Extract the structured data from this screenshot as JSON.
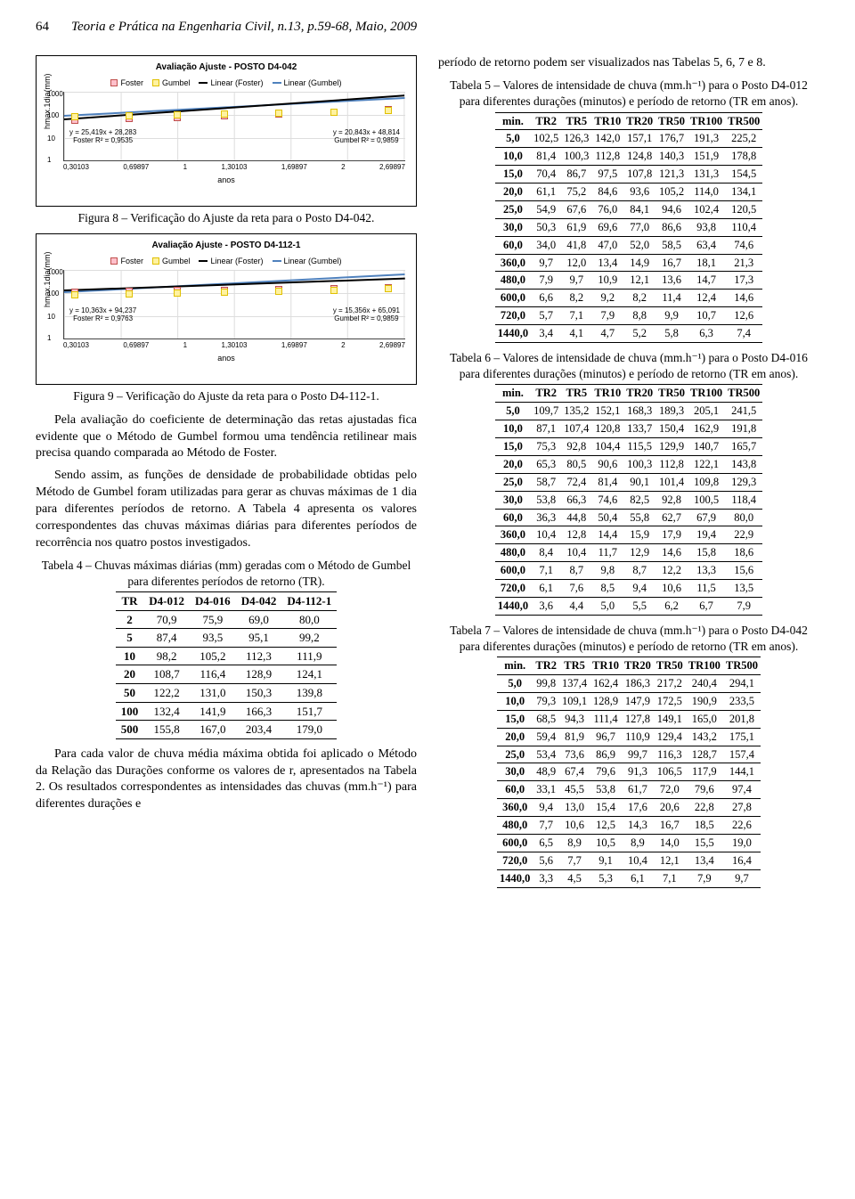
{
  "header": {
    "page": "64",
    "journal": "Teoria e Prática na Engenharia Civil, n.13, p.59-68, Maio, 2009"
  },
  "chart1": {
    "title": "Avaliação Ajuste - POSTO D4-042",
    "legend": [
      "Foster",
      "Gumbel",
      "Linear (Foster)",
      "Linear (Gumbel)"
    ],
    "colors": {
      "foster": "#c0504d",
      "gumbel": "#e0c000",
      "linFoster": "#000000",
      "linGumbel": "#4f81bd"
    },
    "ylabel": "hmax.1dia(mm)",
    "yticks": [
      "1",
      "10",
      "100",
      "1000"
    ],
    "xlabel": "anos",
    "xticks": [
      "0,30103",
      "0,69897",
      "1",
      "1,30103",
      "1,69897",
      "2",
      "2,69897"
    ],
    "eqLeft": {
      "l1": "y = 25,419x + 28,283",
      "l2": "Foster R² = 0,9535"
    },
    "eqRight": {
      "l1": "y = 20,843x + 48,814",
      "l2": "Gumbel R² = 0,9859"
    }
  },
  "fig8": "Figura 8 – Verificação do Ajuste da reta para o Posto D4-042.",
  "chart2": {
    "title": "Avaliação Ajuste - POSTO D4-112-1",
    "legend": [
      "Foster",
      "Gumbel",
      "Linear (Foster)",
      "Linear (Gumbel)"
    ],
    "ylabel": "hmax.1dia(mm)",
    "yticks": [
      "1",
      "10",
      "100",
      "1000"
    ],
    "xlabel": "anos",
    "xticks": [
      "0,30103",
      "0,69897",
      "1",
      "1,30103",
      "1,69897",
      "2",
      "2,69897"
    ],
    "eqLeft": {
      "l1": "y = 10,363x + 94,237",
      "l2": "Foster R² = 0,9763"
    },
    "eqRight": {
      "l1": "y = 15,356x + 65,091",
      "l2": "Gumbel R² = 0,9859"
    }
  },
  "fig9": "Figura 9 – Verificação do Ajuste da reta para o Posto D4-112-1.",
  "paras": {
    "p1": "Pela avaliação do coeficiente de determinação das retas ajustadas fica evidente que o Método de Gumbel formou uma tendência retilinear mais precisa quando comparada ao Método de Foster.",
    "p2": "Sendo assim, as funções de densidade de probabilidade obtidas pelo Método de Gumbel foram utilizadas para gerar as chuvas máximas de 1 dia para diferentes períodos de retorno. A Tabela 4 apresenta os valores correspondentes das chuvas máximas diárias para diferentes períodos de recorrência nos quatro postos investigados.",
    "r1": "período de retorno podem ser visualizados nas Tabelas 5, 6, 7 e 8.",
    "p3": "Para cada valor de chuva média máxima obtida foi aplicado o Método da Relação das Durações conforme os valores de r, apresentados na Tabela 2. Os resultados correspondentes as intensidades das chuvas (mm.h⁻¹) para diferentes durações e"
  },
  "table4": {
    "caption": "Tabela 4 – Chuvas máximas diárias (mm) geradas com o Método de Gumbel para diferentes períodos de retorno (TR).",
    "columns": [
      "TR",
      "D4-012",
      "D4-016",
      "D4-042",
      "D4-112-1"
    ],
    "rows": [
      [
        "2",
        "70,9",
        "75,9",
        "69,0",
        "80,0"
      ],
      [
        "5",
        "87,4",
        "93,5",
        "95,1",
        "99,2"
      ],
      [
        "10",
        "98,2",
        "105,2",
        "112,3",
        "111,9"
      ],
      [
        "20",
        "108,7",
        "116,4",
        "128,9",
        "124,1"
      ],
      [
        "50",
        "122,2",
        "131,0",
        "150,3",
        "139,8"
      ],
      [
        "100",
        "132,4",
        "141,9",
        "166,3",
        "151,7"
      ],
      [
        "500",
        "155,8",
        "167,0",
        "203,4",
        "179,0"
      ]
    ]
  },
  "table5": {
    "caption": "Tabela 5 – Valores de intensidade de chuva (mm.h⁻¹) para o Posto D4-012 para diferentes durações (minutos) e período de retorno (TR em anos).",
    "columns": [
      "min.",
      "TR2",
      "TR5",
      "TR10",
      "TR20",
      "TR50",
      "TR100",
      "TR500"
    ],
    "rows": [
      [
        "5,0",
        "102,5",
        "126,3",
        "142,0",
        "157,1",
        "176,7",
        "191,3",
        "225,2"
      ],
      [
        "10,0",
        "81,4",
        "100,3",
        "112,8",
        "124,8",
        "140,3",
        "151,9",
        "178,8"
      ],
      [
        "15,0",
        "70,4",
        "86,7",
        "97,5",
        "107,8",
        "121,3",
        "131,3",
        "154,5"
      ],
      [
        "20,0",
        "61,1",
        "75,2",
        "84,6",
        "93,6",
        "105,2",
        "114,0",
        "134,1"
      ],
      [
        "25,0",
        "54,9",
        "67,6",
        "76,0",
        "84,1",
        "94,6",
        "102,4",
        "120,5"
      ],
      [
        "30,0",
        "50,3",
        "61,9",
        "69,6",
        "77,0",
        "86,6",
        "93,8",
        "110,4"
      ],
      [
        "60,0",
        "34,0",
        "41,8",
        "47,0",
        "52,0",
        "58,5",
        "63,4",
        "74,6"
      ],
      [
        "360,0",
        "9,7",
        "12,0",
        "13,4",
        "14,9",
        "16,7",
        "18,1",
        "21,3"
      ],
      [
        "480,0",
        "7,9",
        "9,7",
        "10,9",
        "12,1",
        "13,6",
        "14,7",
        "17,3"
      ],
      [
        "600,0",
        "6,6",
        "8,2",
        "9,2",
        "8,2",
        "11,4",
        "12,4",
        "14,6"
      ],
      [
        "720,0",
        "5,7",
        "7,1",
        "7,9",
        "8,8",
        "9,9",
        "10,7",
        "12,6"
      ],
      [
        "1440,0",
        "3,4",
        "4,1",
        "4,7",
        "5,2",
        "5,8",
        "6,3",
        "7,4"
      ]
    ]
  },
  "table6": {
    "caption": "Tabela 6 – Valores de intensidade de chuva (mm.h⁻¹) para o Posto D4-016 para diferentes durações (minutos) e período de retorno (TR em anos).",
    "columns": [
      "min.",
      "TR2",
      "TR5",
      "TR10",
      "TR20",
      "TR50",
      "TR100",
      "TR500"
    ],
    "rows": [
      [
        "5,0",
        "109,7",
        "135,2",
        "152,1",
        "168,3",
        "189,3",
        "205,1",
        "241,5"
      ],
      [
        "10,0",
        "87,1",
        "107,4",
        "120,8",
        "133,7",
        "150,4",
        "162,9",
        "191,8"
      ],
      [
        "15,0",
        "75,3",
        "92,8",
        "104,4",
        "115,5",
        "129,9",
        "140,7",
        "165,7"
      ],
      [
        "20,0",
        "65,3",
        "80,5",
        "90,6",
        "100,3",
        "112,8",
        "122,1",
        "143,8"
      ],
      [
        "25,0",
        "58,7",
        "72,4",
        "81,4",
        "90,1",
        "101,4",
        "109,8",
        "129,3"
      ],
      [
        "30,0",
        "53,8",
        "66,3",
        "74,6",
        "82,5",
        "92,8",
        "100,5",
        "118,4"
      ],
      [
        "60,0",
        "36,3",
        "44,8",
        "50,4",
        "55,8",
        "62,7",
        "67,9",
        "80,0"
      ],
      [
        "360,0",
        "10,4",
        "12,8",
        "14,4",
        "15,9",
        "17,9",
        "19,4",
        "22,9"
      ],
      [
        "480,0",
        "8,4",
        "10,4",
        "11,7",
        "12,9",
        "14,6",
        "15,8",
        "18,6"
      ],
      [
        "600,0",
        "7,1",
        "8,7",
        "9,8",
        "8,7",
        "12,2",
        "13,3",
        "15,6"
      ],
      [
        "720,0",
        "6,1",
        "7,6",
        "8,5",
        "9,4",
        "10,6",
        "11,5",
        "13,5"
      ],
      [
        "1440,0",
        "3,6",
        "4,4",
        "5,0",
        "5,5",
        "6,2",
        "6,7",
        "7,9"
      ]
    ]
  },
  "table7": {
    "caption": "Tabela 7 – Valores de intensidade de chuva (mm.h⁻¹) para o Posto D4-042 para diferentes durações (minutos) e período de retorno (TR em anos).",
    "columns": [
      "min.",
      "TR2",
      "TR5",
      "TR10",
      "TR20",
      "TR50",
      "TR100",
      "TR500"
    ],
    "rows": [
      [
        "5,0",
        "99,8",
        "137,4",
        "162,4",
        "186,3",
        "217,2",
        "240,4",
        "294,1"
      ],
      [
        "10,0",
        "79,3",
        "109,1",
        "128,9",
        "147,9",
        "172,5",
        "190,9",
        "233,5"
      ],
      [
        "15,0",
        "68,5",
        "94,3",
        "111,4",
        "127,8",
        "149,1",
        "165,0",
        "201,8"
      ],
      [
        "20,0",
        "59,4",
        "81,9",
        "96,7",
        "110,9",
        "129,4",
        "143,2",
        "175,1"
      ],
      [
        "25,0",
        "53,4",
        "73,6",
        "86,9",
        "99,7",
        "116,3",
        "128,7",
        "157,4"
      ],
      [
        "30,0",
        "48,9",
        "67,4",
        "79,6",
        "91,3",
        "106,5",
        "117,9",
        "144,1"
      ],
      [
        "60,0",
        "33,1",
        "45,5",
        "53,8",
        "61,7",
        "72,0",
        "79,6",
        "97,4"
      ],
      [
        "360,0",
        "9,4",
        "13,0",
        "15,4",
        "17,6",
        "20,6",
        "22,8",
        "27,8"
      ],
      [
        "480,0",
        "7,7",
        "10,6",
        "12,5",
        "14,3",
        "16,7",
        "18,5",
        "22,6"
      ],
      [
        "600,0",
        "6,5",
        "8,9",
        "10,5",
        "8,9",
        "14,0",
        "15,5",
        "19,0"
      ],
      [
        "720,0",
        "5,6",
        "7,7",
        "9,1",
        "10,4",
        "12,1",
        "13,4",
        "16,4"
      ],
      [
        "1440,0",
        "3,3",
        "4,5",
        "5,3",
        "6,1",
        "7,1",
        "7,9",
        "9,7"
      ]
    ]
  }
}
